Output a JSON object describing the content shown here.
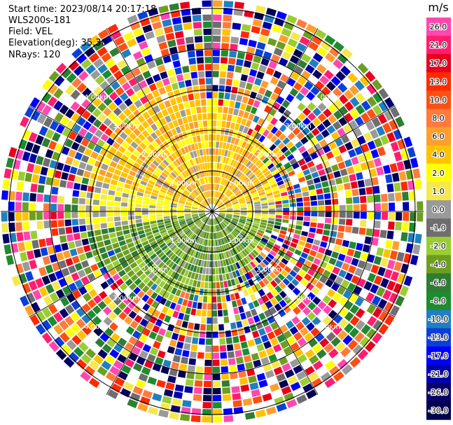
{
  "header": {
    "start_time": "Start time: 2023/08/14 20:17:18",
    "instrument": "WLS200s-181",
    "field": "Field: VEL",
    "elevation": "Elevation(deg): 35.30",
    "nrays": "NRays: 120"
  },
  "chart_data": {
    "type": "ppi",
    "field": "VEL",
    "n_rays": 120,
    "range_rings_km": [
      "1.00km",
      "2.00km",
      "3.00km",
      "4.00km"
    ],
    "colorbar": {
      "unit": "m/s",
      "tick_labels": [
        "26.0",
        "21.0",
        "17.0",
        "13.0",
        "10.0",
        "8.0",
        "6.0",
        "4.0",
        "2.0",
        "1.0",
        "0.0",
        "-1.0",
        "-2.0",
        "-4.0",
        "-6.0",
        "-8.0",
        "-10.0",
        "-13.0",
        "-17.0",
        "-21.0",
        "-26.0",
        "-30.0"
      ],
      "colors": [
        "#ff47b0",
        "#ff1d6f",
        "#e8001c",
        "#ff2a00",
        "#ff4f12",
        "#ff7a3b",
        "#ff9e2c",
        "#ffc200",
        "#ffff00",
        "#f4e84c",
        "#9a9a9a",
        "#6e6e6e",
        "#9acd32",
        "#6e9e20",
        "#2e7d32",
        "#1e8c2e",
        "#1f7fc1",
        "#0b3fd8",
        "#0000ff",
        "#0000a8",
        "#07006a",
        "#00004f"
      ]
    }
  }
}
